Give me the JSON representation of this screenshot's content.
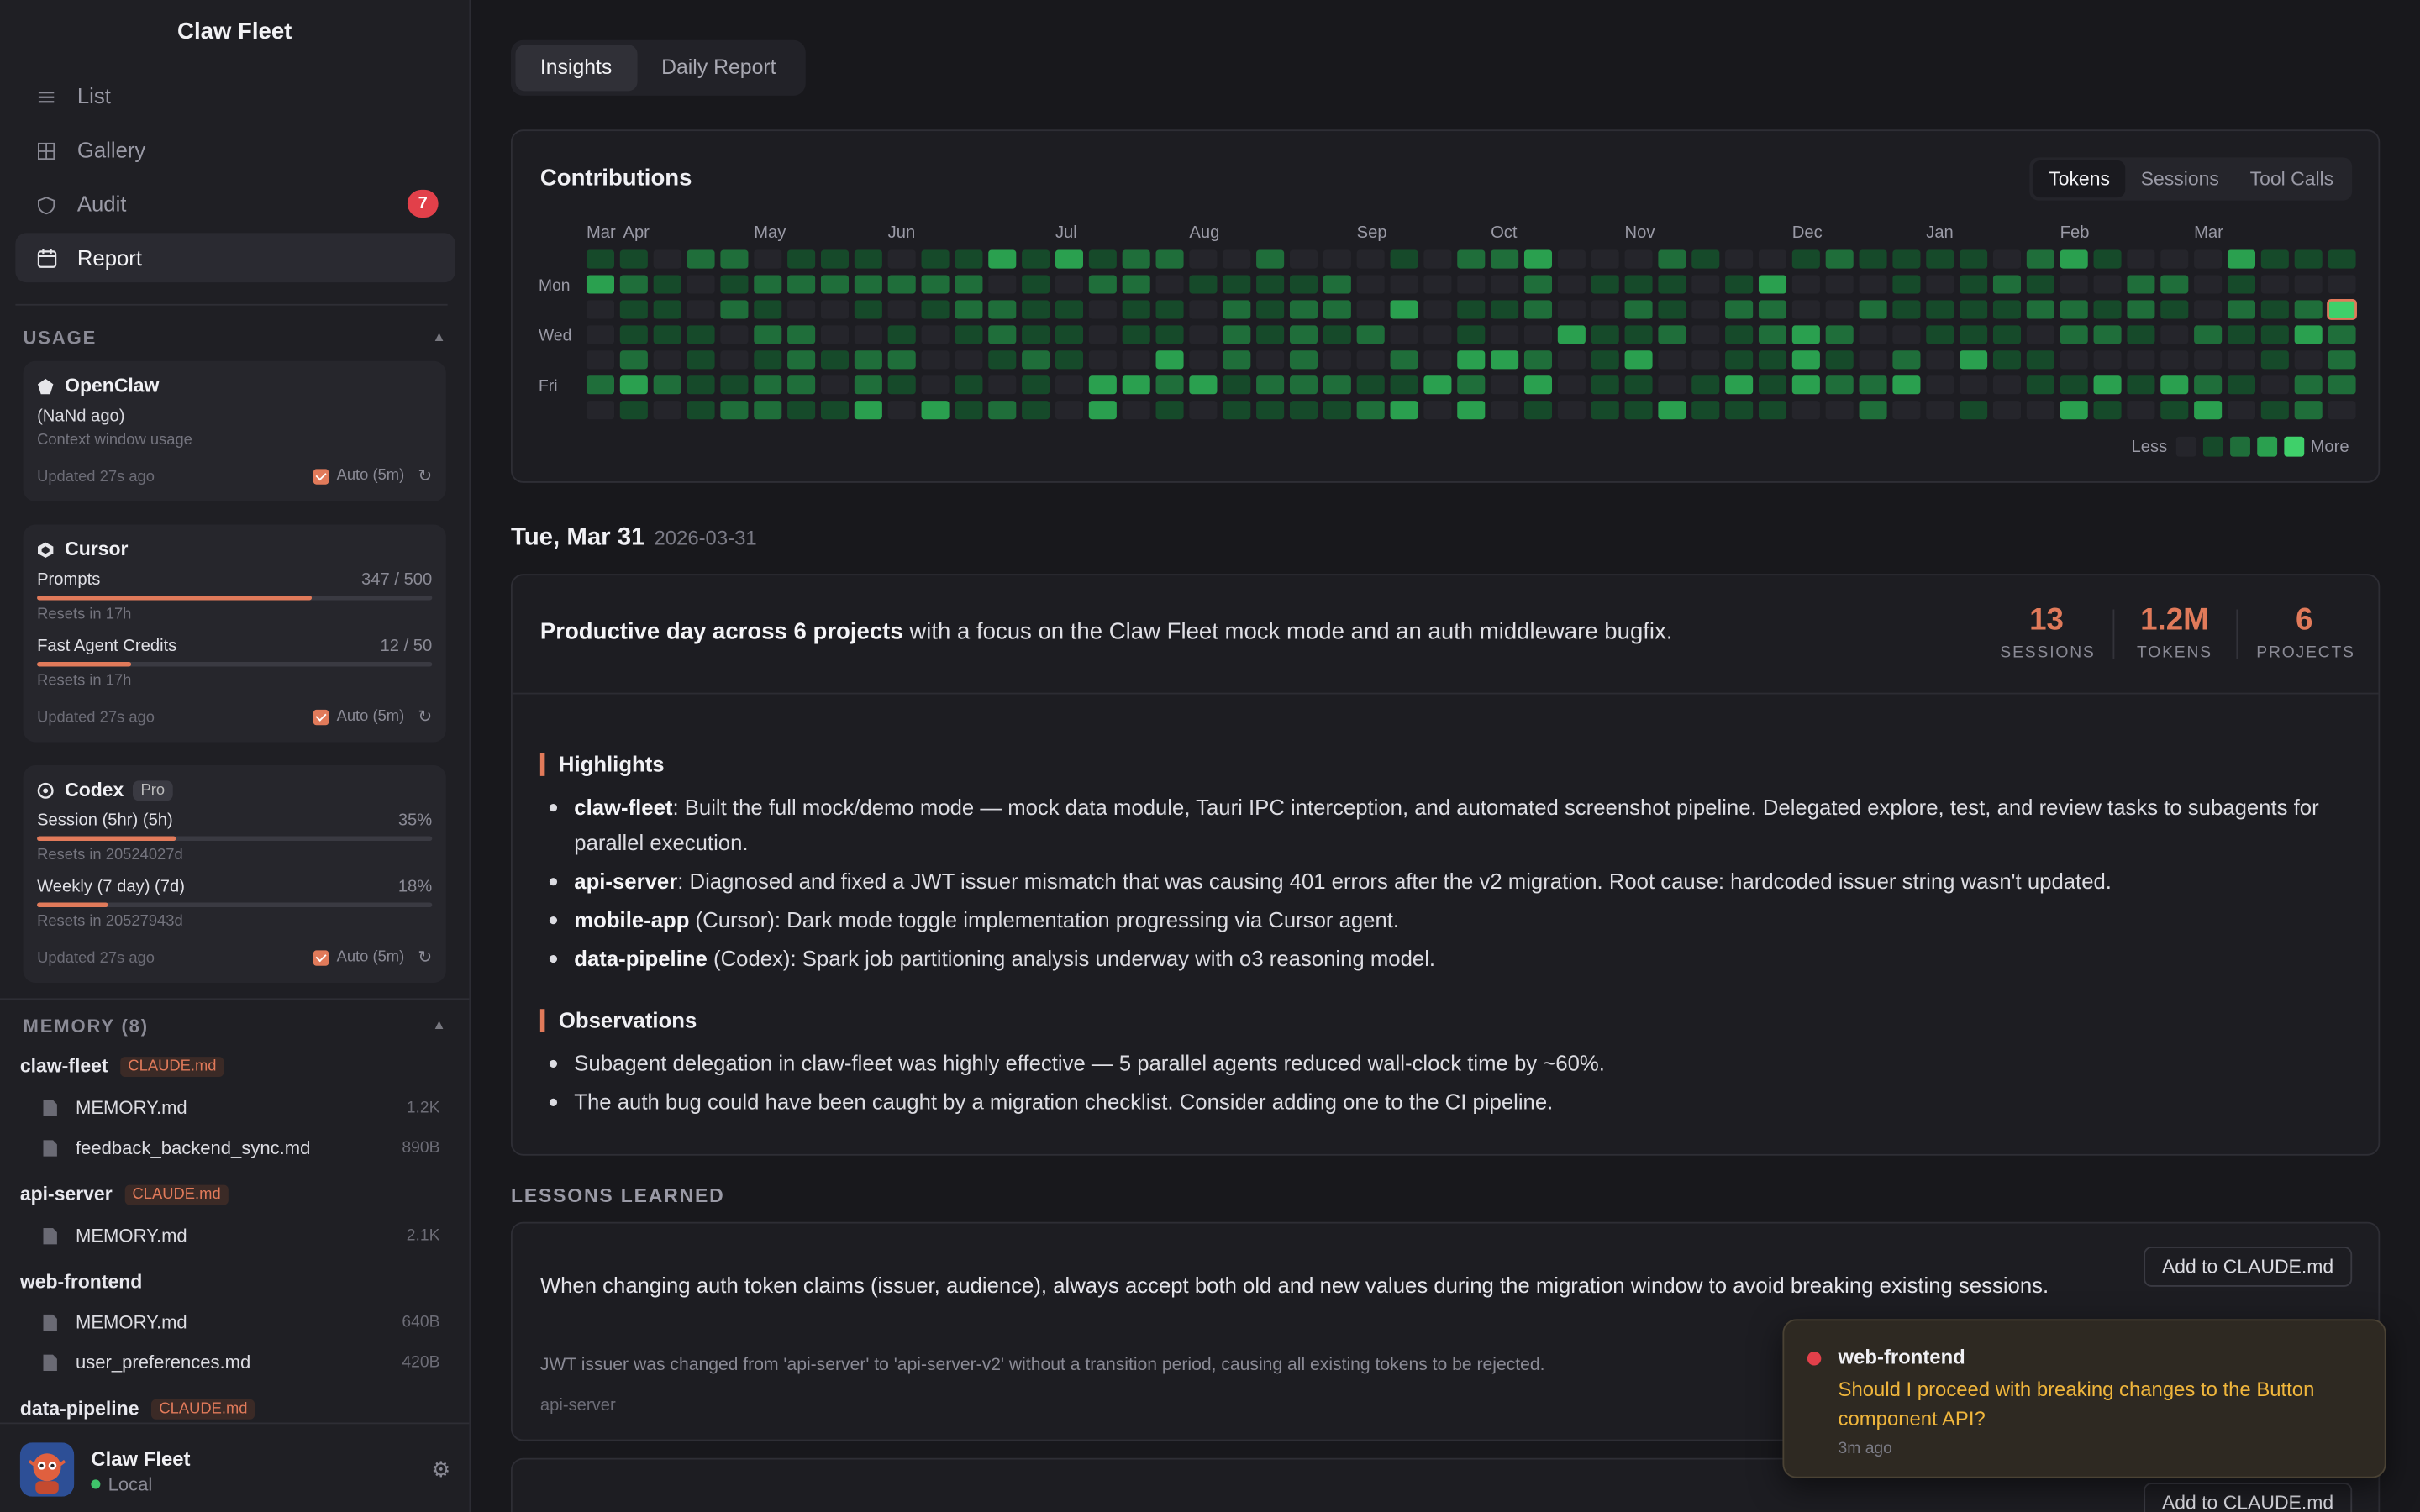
{
  "app_title": "Claw Fleet",
  "nav": [
    {
      "label": "List",
      "icon": "list-icon"
    },
    {
      "label": "Gallery",
      "icon": "grid-icon"
    },
    {
      "label": "Audit",
      "icon": "shield-icon",
      "badge": "7"
    },
    {
      "label": "Report",
      "icon": "calendar-icon",
      "active": true
    }
  ],
  "usage": {
    "header": "USAGE",
    "openclaw": {
      "name": "OpenClaw",
      "ago": "(NaNd ago)",
      "desc": "Context window usage",
      "updated": "Updated 27s ago",
      "auto": "Auto (5m)"
    },
    "cursor": {
      "name": "Cursor",
      "metrics": [
        {
          "label": "Prompts",
          "value": "347 / 500",
          "fraction": 0.694,
          "reset": "Resets in 17h"
        },
        {
          "label": "Fast Agent Credits",
          "value": "12 / 50",
          "fraction": 0.24,
          "reset": "Resets in 17h"
        }
      ],
      "updated": "Updated 27s ago",
      "auto": "Auto (5m)"
    },
    "codex": {
      "name": "Codex",
      "tag": "Pro",
      "metrics": [
        {
          "label": "Session (5hr) (5h)",
          "value": "35%",
          "fraction": 0.35,
          "reset": "Resets in 20524027d"
        },
        {
          "label": "Weekly (7 day) (7d)",
          "value": "18%",
          "fraction": 0.18,
          "reset": "Resets in 20527943d"
        }
      ],
      "updated": "Updated 27s ago",
      "auto": "Auto (5m)"
    }
  },
  "memory": {
    "header": "MEMORY (8)",
    "projects": [
      {
        "name": "claw-fleet",
        "tag": "CLAUDE.md",
        "files": [
          {
            "name": "MEMORY.md",
            "size": "1.2K"
          },
          {
            "name": "feedback_backend_sync.md",
            "size": "890B"
          }
        ]
      },
      {
        "name": "api-server",
        "tag": "CLAUDE.md",
        "files": [
          {
            "name": "MEMORY.md",
            "size": "2.1K"
          }
        ]
      },
      {
        "name": "web-frontend",
        "tag": "",
        "files": [
          {
            "name": "MEMORY.md",
            "size": "640B"
          },
          {
            "name": "user_preferences.md",
            "size": "420B"
          }
        ]
      },
      {
        "name": "data-pipeline",
        "tag": "CLAUDE.md",
        "files": []
      }
    ]
  },
  "footer": {
    "name": "Claw Fleet",
    "status": "Local"
  },
  "tabs": [
    {
      "label": "Insights",
      "active": true
    },
    {
      "label": "Daily Report"
    }
  ],
  "contributions": {
    "title": "Contributions",
    "segments": [
      {
        "label": "Tokens",
        "active": true
      },
      {
        "label": "Sessions"
      },
      {
        "label": "Tool Calls"
      }
    ],
    "months": [
      "Mar",
      "Apr",
      "May",
      "Jun",
      "Jul",
      "Aug",
      "Sep",
      "Oct",
      "Nov",
      "Dec",
      "Jan",
      "Feb",
      "Mar"
    ],
    "day_labels": [
      "Mon",
      "Wed",
      "Fri"
    ],
    "legend_less": "Less",
    "legend_more": "More",
    "colors": [
      "#25252b",
      "#164a2a",
      "#1f6e3a",
      "#2aa04f",
      "#3fd06a"
    ]
  },
  "day": {
    "title": "Tue, Mar 31",
    "date": "2026-03-31",
    "summary_bold": "Productive day across 6 projects",
    "summary_rest": " with a focus on the Claw Fleet mock mode and an auth middleware bugfix.",
    "stats": [
      {
        "value": "13",
        "label": "SESSIONS"
      },
      {
        "value": "1.2M",
        "label": "TOKENS"
      },
      {
        "value": "6",
        "label": "PROJECTS"
      }
    ],
    "highlights_title": "Highlights",
    "highlights": [
      {
        "bold": "claw-fleet",
        "text": ": Built the full mock/demo mode — mock data module, Tauri IPC interception, and automated screenshot pipeline. Delegated explore, test, and review tasks to subagents for parallel execution."
      },
      {
        "bold": "api-server",
        "text": ": Diagnosed and fixed a JWT issuer mismatch that was causing 401 errors after the v2 migration. Root cause: hardcoded issuer string wasn't updated."
      },
      {
        "bold": "mobile-app",
        "text": " (Cursor): Dark mode toggle implementation progressing via Cursor agent."
      },
      {
        "bold": "data-pipeline",
        "text": " (Codex): Spark job partitioning analysis underway with o3 reasoning model."
      }
    ],
    "observations_title": "Observations",
    "observations": [
      "Subagent delegation in claw-fleet was highly effective — 5 parallel agents reduced wall-clock time by ~60%.",
      "The auth bug could have been caught by a migration checklist. Consider adding one to the CI pipeline."
    ]
  },
  "lessons": {
    "header": "LESSONS LEARNED",
    "items": [
      {
        "text": "When changing auth token claims (issuer, audience), always accept both old and new values during the migration window to avoid breaking existing sessions.",
        "detail": "JWT issuer was changed from 'api-server' to 'api-server-v2' without a transition period, causing all existing tokens to be rejected.",
        "project": "api-server",
        "button": "Add to CLAUDE.md"
      },
      {
        "button": "Add to CLAUDE.md"
      }
    ]
  },
  "toast": {
    "project": "web-frontend",
    "message": "Should I proceed with breaking changes to the Button component API?",
    "time": "3m ago"
  }
}
